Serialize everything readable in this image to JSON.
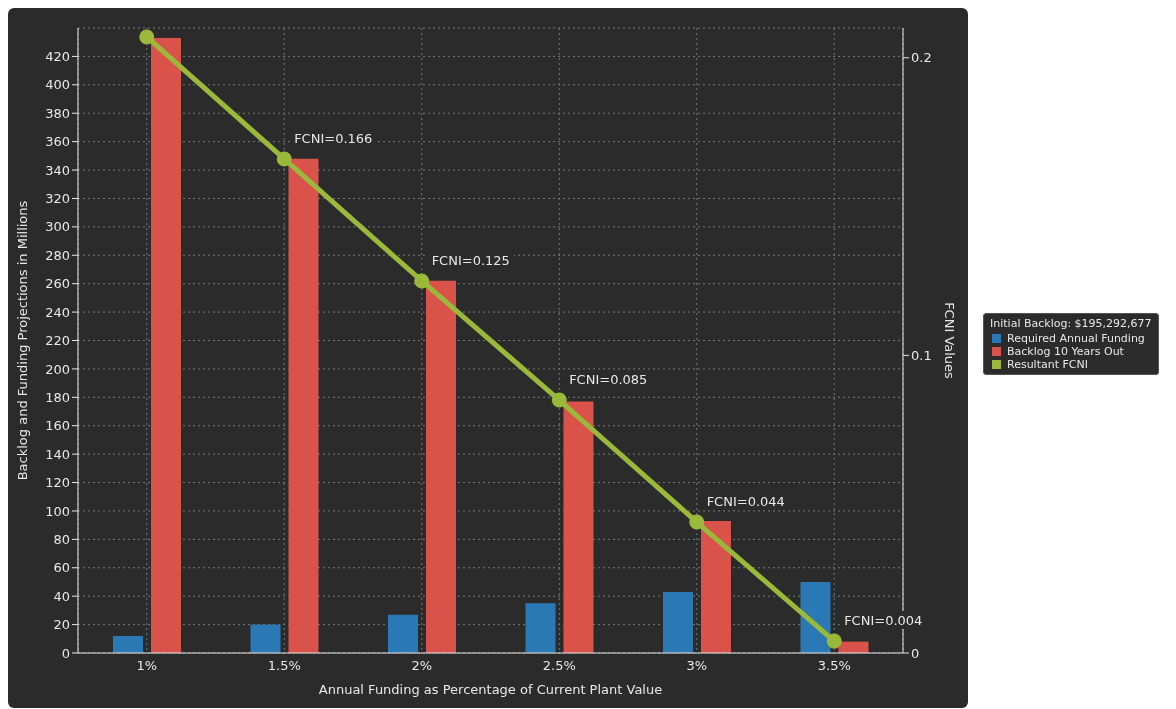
{
  "chart_data": {
    "type": "bar",
    "xlabel": "Annual Funding as Percentage of Current Plant Value",
    "ylabel": "Backlog and Funding Projections in Millions",
    "y2label": "FCNI Values",
    "legend_title": "Initial Backlog: $195,292,677",
    "categories": [
      "1%",
      "1.5%",
      "2%",
      "2.5%",
      "3%",
      "3.5%"
    ],
    "series": [
      {
        "name": "Required Annual Funding",
        "color": "#2a78b4",
        "values": [
          12,
          20,
          27,
          35,
          43,
          50
        ]
      },
      {
        "name": "Backlog 10 Years Out",
        "color": "#d9534a",
        "values": [
          433,
          348,
          262,
          177,
          93,
          8
        ]
      },
      {
        "name": "Resultant FCNI",
        "type": "line",
        "axis": "y2",
        "color": "#9ab83a",
        "values": [
          0.207,
          0.166,
          0.125,
          0.085,
          0.044,
          0.004
        ],
        "value_labels": [
          null,
          "FCNI=0.166",
          "FCNI=0.125",
          "FCNI=0.085",
          "FCNI=0.044",
          "FCNI=0.004"
        ]
      }
    ],
    "ylim": [
      0,
      440
    ],
    "yticks": [
      0,
      20,
      40,
      60,
      80,
      100,
      120,
      140,
      160,
      180,
      200,
      220,
      240,
      260,
      280,
      300,
      320,
      340,
      360,
      380,
      400,
      420
    ],
    "y2lim": [
      0,
      0.21
    ],
    "y2ticks": [
      0,
      0.1,
      0.2
    ],
    "grid": true,
    "legend": "right",
    "marker": "circle"
  }
}
